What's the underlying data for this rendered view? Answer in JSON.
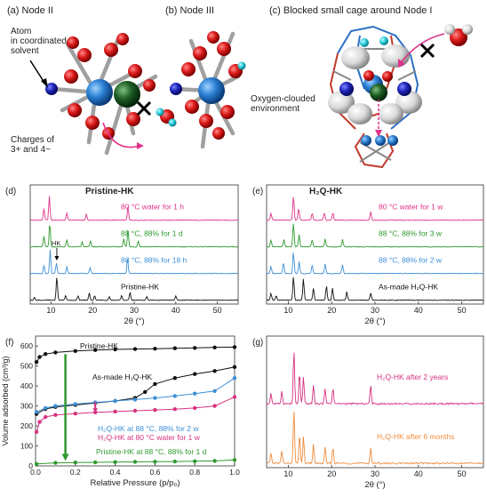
{
  "top": {
    "a": {
      "title": "(a) Node II",
      "label_solvent": [
        "Atom",
        "in coordinated",
        "solvent"
      ],
      "label_charges": [
        "Charges of",
        "3+ and 4−"
      ]
    },
    "b": {
      "title": "(b) Node III",
      "label_oxygen": [
        "Oxygen-clouded",
        "environment"
      ]
    },
    "c": {
      "title": "(c) Blocked small cage around Node I"
    }
  },
  "colors": {
    "pink": "#e0338a",
    "green": "#2f9a2f",
    "blue": "#3d8fd6",
    "black": "#111111",
    "orange": "#f08c3c",
    "magenta": "#d6327f"
  },
  "chart_data": [
    {
      "id": "d",
      "type": "line",
      "panel_label": "(d)",
      "title": "Pristine-HK",
      "xlabel": "2θ (°)",
      "xlim": [
        5,
        55
      ],
      "xticks": [
        10,
        20,
        30,
        40,
        50
      ],
      "annotation": "HK",
      "series": [
        {
          "name": "80 °C water for 1 h",
          "color": "#e0338a",
          "peaks": [
            [
              8.3,
              0.5
            ],
            [
              9.6,
              1.0
            ],
            [
              13.8,
              0.3
            ],
            [
              18.5,
              0.25
            ],
            [
              28.5,
              0.55
            ]
          ]
        },
        {
          "name": "88 °C, 88% for 1 d",
          "color": "#2f9a2f",
          "peaks": [
            [
              8.3,
              0.45
            ],
            [
              9.7,
              1.0
            ],
            [
              13.8,
              0.3
            ],
            [
              17.5,
              0.2
            ],
            [
              19.5,
              0.25
            ],
            [
              27.5,
              0.35
            ],
            [
              28.5,
              0.7
            ],
            [
              31,
              0.25
            ]
          ]
        },
        {
          "name": "88 °C, 88% for 18 h",
          "color": "#3d8fd6",
          "peaks": [
            [
              8.3,
              0.35
            ],
            [
              9.8,
              1.0
            ],
            [
              11.3,
              0.45
            ],
            [
              13.8,
              0.3
            ],
            [
              19.4,
              0.25
            ],
            [
              28.4,
              0.65
            ]
          ]
        },
        {
          "name": "Pristine-HK",
          "color": "#111111",
          "peaks": [
            [
              6,
              0.12
            ],
            [
              11.4,
              1.0
            ],
            [
              13.5,
              0.2
            ],
            [
              16.5,
              0.18
            ],
            [
              19.2,
              0.3
            ],
            [
              20.5,
              0.2
            ],
            [
              24,
              0.15
            ],
            [
              27,
              0.2
            ],
            [
              29,
              0.35
            ],
            [
              33,
              0.15
            ],
            [
              40,
              0.18
            ]
          ]
        }
      ]
    },
    {
      "id": "e",
      "type": "line",
      "panel_label": "(e)",
      "title": "H₂Q-HK",
      "xlabel": "2θ (°)",
      "xlim": [
        5,
        55
      ],
      "xticks": [
        10,
        20,
        30,
        40,
        50
      ],
      "series": [
        {
          "name": "80 °C water for 1 w",
          "color": "#e0338a",
          "peaks": [
            [
              6,
              0.3
            ],
            [
              11.2,
              1.0
            ],
            [
              12.4,
              0.5
            ],
            [
              15.5,
              0.3
            ],
            [
              18.3,
              0.3
            ],
            [
              20.3,
              0.3
            ],
            [
              29,
              0.35
            ]
          ]
        },
        {
          "name": "88 °C, 88% for 3 w",
          "color": "#2f9a2f",
          "peaks": [
            [
              6,
              0.3
            ],
            [
              9,
              0.3
            ],
            [
              11.2,
              1.0
            ],
            [
              12.5,
              0.5
            ],
            [
              15.5,
              0.3
            ],
            [
              18.5,
              0.35
            ],
            [
              22.5,
              0.3
            ]
          ]
        },
        {
          "name": "88 °C, 88% for 2 w",
          "color": "#3d8fd6",
          "peaks": [
            [
              6,
              0.3
            ],
            [
              8.9,
              0.45
            ],
            [
              11.2,
              0.9
            ],
            [
              12.5,
              0.5
            ],
            [
              15.5,
              0.35
            ],
            [
              18.5,
              0.4
            ],
            [
              22.5,
              0.35
            ]
          ]
        },
        {
          "name": "As-made H₂Q-HK",
          "color": "#111111",
          "peaks": [
            [
              6,
              0.3
            ],
            [
              7.2,
              0.2
            ],
            [
              11.2,
              1.0
            ],
            [
              13.5,
              0.9
            ],
            [
              15.8,
              0.5
            ],
            [
              18.8,
              0.6
            ],
            [
              20.2,
              0.5
            ],
            [
              23.5,
              0.35
            ],
            [
              29,
              0.3
            ]
          ]
        }
      ]
    },
    {
      "id": "f",
      "type": "scatter",
      "panel_label": "(f)",
      "xlabel": "Relative Pressure (p/p₀)",
      "ylabel": "Volume adsorbed (cm³/g)",
      "xlim": [
        0,
        1.0
      ],
      "ylim": [
        0,
        650
      ],
      "xticks": [
        0.0,
        0.2,
        0.4,
        0.6,
        0.8,
        1.0
      ],
      "yticks": [
        0,
        100,
        200,
        300,
        400,
        500,
        600
      ],
      "series": [
        {
          "name": "Pristine-HK",
          "color": "#111111",
          "adsorption": [
            [
              0.005,
              520
            ],
            [
              0.02,
              545
            ],
            [
              0.05,
              560
            ],
            [
              0.1,
              568
            ],
            [
              0.2,
              575
            ],
            [
              0.3,
              580
            ],
            [
              0.4,
              583
            ],
            [
              0.5,
              585
            ],
            [
              0.6,
              587
            ],
            [
              0.7,
              589
            ],
            [
              0.8,
              591
            ],
            [
              0.9,
              593
            ],
            [
              1.0,
              595
            ]
          ]
        },
        {
          "name": "As-made H₂Q-HK",
          "color": "#111111",
          "adsorption": [
            [
              0.005,
              260
            ],
            [
              0.05,
              285
            ],
            [
              0.1,
              295
            ],
            [
              0.2,
              305
            ],
            [
              0.3,
              315
            ],
            [
              0.4,
              325
            ],
            [
              0.5,
              340
            ],
            [
              0.55,
              370
            ],
            [
              0.6,
              410
            ],
            [
              0.7,
              440
            ],
            [
              0.8,
              460
            ],
            [
              0.9,
              475
            ],
            [
              1.0,
              495
            ]
          ]
        },
        {
          "name": "H₂Q-HK at 88 °C, 88% for 2 w",
          "color": "#3d8fd6",
          "adsorption": [
            [
              0.005,
              270
            ],
            [
              0.05,
              290
            ],
            [
              0.1,
              300
            ],
            [
              0.2,
              310
            ],
            [
              0.3,
              318
            ],
            [
              0.4,
              325
            ],
            [
              0.5,
              332
            ],
            [
              0.6,
              340
            ],
            [
              0.7,
              350
            ],
            [
              0.8,
              362
            ],
            [
              0.9,
              375
            ],
            [
              1.0,
              440
            ]
          ]
        },
        {
          "name": "H₂Q-HK at 80 °C water for 1 w",
          "color": "#d6327f",
          "adsorption": [
            [
              0.005,
              170
            ],
            [
              0.02,
              220
            ],
            [
              0.05,
              245
            ],
            [
              0.1,
              255
            ],
            [
              0.2,
              262
            ],
            [
              0.3,
              268
            ],
            [
              0.4,
              272
            ],
            [
              0.5,
              276
            ],
            [
              0.6,
              280
            ],
            [
              0.7,
              284
            ],
            [
              0.8,
              290
            ],
            [
              0.9,
              300
            ],
            [
              1.0,
              345
            ]
          ]
        },
        {
          "name": "Pristine-HK at 88 °C, 88% for 1 d",
          "color": "#2f9a2f",
          "adsorption": [
            [
              0.005,
              10
            ],
            [
              0.1,
              15
            ],
            [
              0.2,
              17
            ],
            [
              0.3,
              18
            ],
            [
              0.4,
              19
            ],
            [
              0.5,
              20
            ],
            [
              0.6,
              21
            ],
            [
              0.7,
              22
            ],
            [
              0.8,
              23
            ],
            [
              0.9,
              25
            ],
            [
              1.0,
              30
            ]
          ]
        }
      ]
    },
    {
      "id": "g",
      "type": "line",
      "panel_label": "(g)",
      "xlabel": "2θ (°)",
      "xlim": [
        5,
        55
      ],
      "xticks": [
        10,
        20,
        30,
        40,
        50
      ],
      "series": [
        {
          "name": "H₂Q-HK after 2 years",
          "color": "#d6327f",
          "peaks": [
            [
              6,
              0.2
            ],
            [
              8.5,
              0.25
            ],
            [
              11.3,
              1.0
            ],
            [
              12.6,
              0.6
            ],
            [
              13.5,
              0.5
            ],
            [
              15.8,
              0.35
            ],
            [
              18.5,
              0.3
            ],
            [
              20.3,
              0.3
            ],
            [
              29,
              0.35
            ]
          ]
        },
        {
          "name": "H₂Q-HK after 6 months",
          "color": "#f08c3c",
          "peaks": [
            [
              6,
              0.2
            ],
            [
              8.5,
              0.25
            ],
            [
              11.3,
              1.0
            ],
            [
              12.6,
              0.55
            ],
            [
              13.5,
              0.5
            ],
            [
              15.8,
              0.35
            ],
            [
              18.5,
              0.3
            ],
            [
              20.3,
              0.3
            ],
            [
              29,
              0.3
            ]
          ]
        }
      ]
    }
  ]
}
